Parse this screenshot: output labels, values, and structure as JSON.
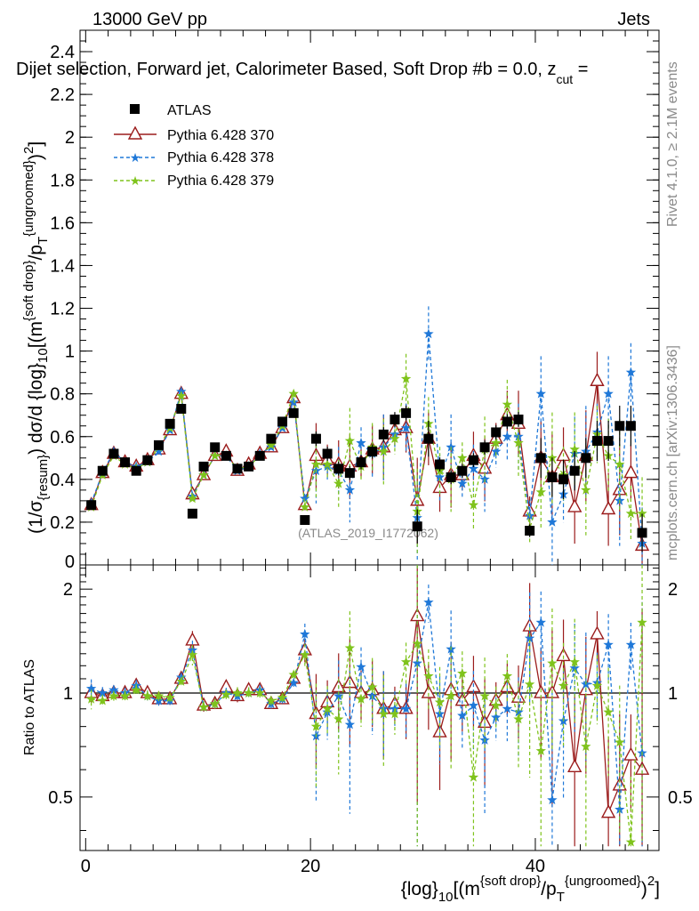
{
  "header": {
    "left": "13000 GeV pp",
    "right": "Jets"
  },
  "plot_title": "Dijet selection, Forward jet, Calorimeter Based, Soft Drop #b = 0.0, z",
  "plot_title_sub": "cut",
  "plot_title_tail": " =",
  "side_label_top": "Rivet 4.1.0, ≥ 2.1M events",
  "side_label_bottom": "mcplots.cern.ch [arXiv:1306.3436]",
  "analysis_id": "(ATLAS_2019_I1772062)",
  "ratio_ylabel": "Ratio to ATLAS",
  "colors": {
    "atlas": "#000000",
    "p370": "#9b1c1c",
    "p378": "#1f78d8",
    "p379": "#7fc31c"
  },
  "chart_data": [
    {
      "type": "scatter",
      "panel": "main",
      "ylabel": "(1/σ_resum) dσ/d {log}_10[(m^{soft drop}/p_T^{ungroomed})^2]",
      "xlabel": "{log}_10[(m^{soft drop}/p_T^{ungroomed})^2]",
      "xlim": [
        -0.5,
        51
      ],
      "ylim": [
        0,
        2.5
      ],
      "yticks": [
        0.2,
        0.4,
        0.6,
        0.8,
        1,
        1.2,
        1.4,
        1.6,
        1.8,
        2,
        2.2,
        2.4
      ],
      "yticks_partial": [
        0
      ],
      "xticks": [
        0,
        20,
        40
      ],
      "legend": [
        "ATLAS",
        "Pythia 6.428 370",
        "Pythia 6.428 378",
        "Pythia 6.428 379"
      ],
      "x": [
        0.5,
        1.5,
        2.5,
        3.5,
        4.5,
        5.5,
        6.5,
        7.5,
        8.5,
        9.5,
        10.5,
        11.5,
        12.5,
        13.5,
        14.5,
        15.5,
        16.5,
        17.5,
        18.5,
        19.5,
        20.5,
        21.5,
        22.5,
        23.5,
        24.5,
        25.5,
        26.5,
        27.5,
        28.5,
        29.5,
        30.5,
        31.5,
        32.5,
        33.5,
        34.5,
        35.5,
        36.5,
        37.5,
        38.5,
        39.5,
        40.5,
        41.5,
        42.5,
        43.5,
        44.5,
        45.5,
        46.5,
        47.5,
        48.5,
        49.5
      ],
      "series": [
        {
          "name": "ATLAS",
          "values": [
            0.28,
            0.44,
            0.52,
            0.48,
            0.44,
            0.49,
            0.56,
            0.66,
            0.73,
            0.24,
            0.46,
            0.55,
            0.51,
            0.45,
            0.46,
            0.51,
            0.59,
            0.67,
            0.71,
            0.21,
            0.59,
            0.52,
            0.45,
            0.43,
            0.48,
            0.53,
            0.61,
            0.68,
            0.71,
            0.18,
            0.59,
            0.47,
            0.41,
            0.44,
            0.49,
            0.55,
            0.62,
            0.67,
            0.68,
            0.16,
            0.5,
            0.41,
            0.4,
            0.44,
            0.5,
            0.58,
            0.58,
            0.65,
            0.65,
            0.15
          ]
        },
        {
          "name": "Pythia 6.428 370",
          "values": [
            0.28,
            0.43,
            0.52,
            0.48,
            0.46,
            0.49,
            0.54,
            0.63,
            0.8,
            0.33,
            0.42,
            0.51,
            0.53,
            0.44,
            0.47,
            0.52,
            0.55,
            0.64,
            0.78,
            0.28,
            0.51,
            0.49,
            0.47,
            0.46,
            0.48,
            0.54,
            0.55,
            0.63,
            0.64,
            0.3,
            0.59,
            0.36,
            0.42,
            0.42,
            0.51,
            0.45,
            0.59,
            0.7,
            0.66,
            0.25,
            0.5,
            0.41,
            0.51,
            0.27,
            0.51,
            0.86,
            0.26,
            0.35,
            0.43,
            0.09
          ]
        },
        {
          "name": "Pythia 6.428 378",
          "values": [
            0.29,
            0.43,
            0.53,
            0.48,
            0.46,
            0.48,
            0.53,
            0.63,
            0.81,
            0.32,
            0.42,
            0.51,
            0.51,
            0.44,
            0.46,
            0.52,
            0.55,
            0.64,
            0.76,
            0.31,
            0.44,
            0.46,
            0.44,
            0.35,
            0.57,
            0.52,
            0.55,
            0.61,
            0.64,
            0.22,
            1.08,
            0.41,
            0.55,
            0.38,
            0.45,
            0.4,
            0.53,
            0.6,
            0.6,
            0.23,
            0.8,
            0.2,
            0.33,
            0.52,
            0.53,
            0.62,
            0.8,
            0.3,
            0.9,
            0.1
          ]
        },
        {
          "name": "Pythia 6.428 379",
          "values": [
            0.27,
            0.42,
            0.51,
            0.47,
            0.45,
            0.48,
            0.55,
            0.64,
            0.79,
            0.31,
            0.42,
            0.51,
            0.51,
            0.45,
            0.46,
            0.51,
            0.56,
            0.65,
            0.8,
            0.27,
            0.47,
            0.47,
            0.38,
            0.58,
            0.46,
            0.55,
            0.53,
            0.59,
            0.87,
            0.25,
            0.66,
            0.44,
            0.4,
            0.5,
            0.28,
            0.54,
            0.57,
            0.75,
            0.57,
            0.17,
            0.34,
            0.5,
            0.42,
            0.54,
            0.35,
            0.61,
            0.51,
            0.47,
            0.24,
            0.24
          ]
        }
      ]
    },
    {
      "type": "scatter",
      "panel": "ratio",
      "ylabel": "Ratio to ATLAS",
      "xlim": [
        -0.5,
        51
      ],
      "ylim": [
        0.35,
        2.35
      ],
      "yticks": [
        0.5,
        1,
        2
      ],
      "reference_line": 1,
      "x": [
        0.5,
        1.5,
        2.5,
        3.5,
        4.5,
        5.5,
        6.5,
        7.5,
        8.5,
        9.5,
        10.5,
        11.5,
        12.5,
        13.5,
        14.5,
        15.5,
        16.5,
        17.5,
        18.5,
        19.5,
        20.5,
        21.5,
        22.5,
        23.5,
        24.5,
        25.5,
        26.5,
        27.5,
        28.5,
        29.5,
        30.5,
        31.5,
        32.5,
        33.5,
        34.5,
        35.5,
        36.5,
        37.5,
        38.5,
        39.5,
        40.5,
        41.5,
        42.5,
        43.5,
        44.5,
        45.5,
        46.5,
        47.5,
        48.5,
        49.5
      ],
      "series": [
        {
          "name": "Pythia 6.428 370",
          "values": [
            1.0,
            0.98,
            1.0,
            1.0,
            1.05,
            1.0,
            0.96,
            0.96,
            1.1,
            1.42,
            0.92,
            0.93,
            1.04,
            0.98,
            1.02,
            1.02,
            0.93,
            0.96,
            1.1,
            1.33,
            0.87,
            0.94,
            1.04,
            1.07,
            1.0,
            1.02,
            0.9,
            0.93,
            0.9,
            1.67,
            1.0,
            0.77,
            1.02,
            0.95,
            1.04,
            0.82,
            0.95,
            1.04,
            0.97,
            1.56,
            1.0,
            1.0,
            1.28,
            0.61,
            1.02,
            1.48,
            0.45,
            0.54,
            0.66,
            0.6
          ]
        },
        {
          "name": "Pythia 6.428 378",
          "values": [
            1.03,
            1.0,
            1.02,
            1.0,
            1.05,
            0.98,
            0.95,
            0.95,
            1.11,
            1.33,
            0.91,
            0.93,
            1.0,
            0.98,
            1.0,
            1.02,
            0.93,
            0.96,
            1.07,
            1.48,
            0.75,
            0.88,
            0.98,
            0.81,
            1.19,
            0.98,
            0.9,
            0.9,
            0.9,
            1.22,
            1.83,
            0.87,
            1.34,
            0.86,
            0.92,
            0.73,
            0.85,
            0.9,
            0.88,
            1.44,
            1.6,
            0.49,
            0.83,
            1.18,
            1.06,
            1.07,
            1.38,
            0.46,
            1.38,
            0.67
          ]
        },
        {
          "name": "Pythia 6.428 379",
          "values": [
            0.96,
            0.95,
            0.98,
            0.98,
            1.02,
            0.98,
            0.98,
            0.97,
            1.08,
            1.29,
            0.91,
            0.93,
            0.99,
            1.0,
            1.0,
            1.0,
            0.95,
            0.97,
            1.13,
            1.29,
            0.8,
            0.9,
            0.84,
            1.35,
            0.96,
            1.04,
            0.87,
            0.87,
            1.23,
            1.39,
            1.12,
            0.94,
            0.98,
            1.14,
            0.57,
            0.98,
            0.92,
            1.12,
            0.84,
            1.06,
            0.68,
            1.22,
            1.05,
            1.23,
            0.7,
            1.05,
            0.88,
            0.72,
            0.37,
            1.6
          ]
        }
      ]
    }
  ]
}
